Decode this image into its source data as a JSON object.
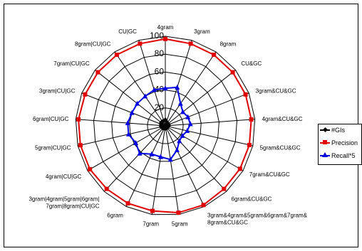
{
  "chart_data": {
    "type": "radar",
    "rlim": [
      0,
      100
    ],
    "rticks": [
      "0",
      "20",
      "40",
      "60",
      "80",
      "100"
    ],
    "grid": true,
    "legend_position": "right",
    "categories": [
      "4gram",
      "3gram",
      "8gram",
      "CU&GC",
      "3gram&CU&GC",
      "4gram&CU&GC",
      "5gram&CU&GC",
      "7gram&CU&GC",
      "6gram&CU&GC",
      "3gram&4gram&5gram&6gram&7gram&\n8gram&CU&GC",
      "5gram",
      "7gram",
      "6gram",
      "3gram|4gram|5gram|6gram|\n7gram|8gram|CU|GC",
      "4gram|CU|GC",
      "5gram|CU|GC",
      "6gram|CU|GC",
      "3gram|CU|GC",
      "7gram|CU|GC",
      "8gram|CU|GC",
      "CU|GC"
    ],
    "series": [
      {
        "name": "#GIs",
        "color": "#000000",
        "marker": "diamond",
        "values": [
          7,
          5,
          4,
          4,
          4,
          4,
          3,
          3,
          3,
          3,
          3,
          3,
          3,
          4,
          4,
          5,
          5,
          5,
          6,
          6,
          6
        ]
      },
      {
        "name": "Precision",
        "color": "#e00000",
        "marker": "square",
        "values": [
          97,
          96,
          96,
          96,
          96,
          96,
          96,
          96,
          96,
          98,
          98,
          96,
          96,
          96,
          97,
          97,
          97,
          96,
          96,
          96,
          96
        ]
      },
      {
        "name": "Recall*5",
        "color": "#0000e0",
        "marker": "triangle",
        "values": [
          42,
          45,
          30,
          25,
          27,
          28,
          25,
          22,
          23,
          30,
          38,
          35,
          35,
          42,
          38,
          42,
          42,
          40,
          40,
          40,
          42
        ]
      }
    ]
  }
}
